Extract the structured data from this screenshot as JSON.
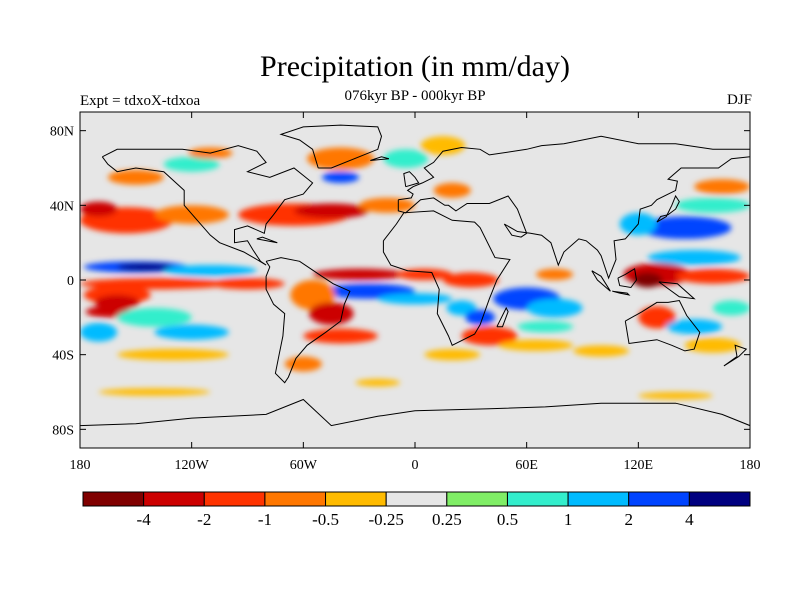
{
  "title": "Precipitation (in mm/day)",
  "subtitle": "076kyr BP - 000kyr BP",
  "left_label": "Expt = tdxoX-tdxoa",
  "right_label": "DJF",
  "map": {
    "lon_range": [
      -180,
      180
    ],
    "lat_range": [
      -90,
      90
    ],
    "background_color": "#e6e6e6",
    "coastline_color": "#000000"
  },
  "axes": {
    "x_ticks": [
      {
        "value": -180,
        "label": "180"
      },
      {
        "value": -120,
        "label": "120W"
      },
      {
        "value": -60,
        "label": "60W"
      },
      {
        "value": 0,
        "label": "0"
      },
      {
        "value": 60,
        "label": "60E"
      },
      {
        "value": 120,
        "label": "120E"
      },
      {
        "value": 180,
        "label": "180"
      }
    ],
    "y_ticks": [
      {
        "value": 80,
        "label": "80N"
      },
      {
        "value": 40,
        "label": "40N"
      },
      {
        "value": 0,
        "label": "0"
      },
      {
        "value": -40,
        "label": "40S"
      },
      {
        "value": -80,
        "label": "80S"
      }
    ]
  },
  "colorbar": {
    "colors": [
      "#800000",
      "#cc0000",
      "#ff3300",
      "#ff7700",
      "#ffbb00",
      "#e6e6e6",
      "#80ee66",
      "#33eecc",
      "#00bbff",
      "#0044ff",
      "#000080"
    ],
    "labels": [
      "-4",
      "-2",
      "-1",
      "-0.5",
      "-0.25",
      "0.25",
      "0.5",
      "1",
      "2",
      "4"
    ]
  },
  "anomaly_regions": [
    {
      "lon": -150,
      "lat": 7,
      "rx": 28,
      "ry": 3,
      "color": "#0044ff"
    },
    {
      "lon": -145,
      "lat": 7,
      "rx": 15,
      "ry": 2,
      "color": "#000080"
    },
    {
      "lon": -110,
      "lat": 5,
      "rx": 25,
      "ry": 3,
      "color": "#00bbff"
    },
    {
      "lon": -140,
      "lat": -2,
      "rx": 40,
      "ry": 3,
      "color": "#ff3300"
    },
    {
      "lon": -90,
      "lat": -2,
      "rx": 20,
      "ry": 3,
      "color": "#ff3300"
    },
    {
      "lon": -160,
      "lat": -8,
      "rx": 18,
      "ry": 5,
      "color": "#ff3300"
    },
    {
      "lon": -160,
      "lat": -12,
      "rx": 12,
      "ry": 4,
      "color": "#cc0000"
    },
    {
      "lon": -165,
      "lat": -17,
      "rx": 12,
      "ry": 3,
      "color": "#cc0000"
    },
    {
      "lon": -170,
      "lat": -28,
      "rx": 10,
      "ry": 5,
      "color": "#00bbff"
    },
    {
      "lon": -140,
      "lat": -20,
      "rx": 20,
      "ry": 5,
      "color": "#33eecc"
    },
    {
      "lon": -120,
      "lat": -28,
      "rx": 20,
      "ry": 4,
      "color": "#00bbff"
    },
    {
      "lon": -130,
      "lat": -40,
      "rx": 30,
      "ry": 3,
      "color": "#ffbb00"
    },
    {
      "lon": -155,
      "lat": 32,
      "rx": 25,
      "ry": 7,
      "color": "#ff3300"
    },
    {
      "lon": -170,
      "lat": 38,
      "rx": 10,
      "ry": 4,
      "color": "#cc0000"
    },
    {
      "lon": -120,
      "lat": 35,
      "rx": 20,
      "ry": 5,
      "color": "#ff7700"
    },
    {
      "lon": -150,
      "lat": 55,
      "rx": 15,
      "ry": 4,
      "color": "#ff7700"
    },
    {
      "lon": -120,
      "lat": 62,
      "rx": 15,
      "ry": 4,
      "color": "#33eecc"
    },
    {
      "lon": -110,
      "lat": 68,
      "rx": 12,
      "ry": 3,
      "color": "#ff7700"
    },
    {
      "lon": -65,
      "lat": 35,
      "rx": 30,
      "ry": 6,
      "color": "#ff3300"
    },
    {
      "lon": -45,
      "lat": 37,
      "rx": 20,
      "ry": 4,
      "color": "#cc0000"
    },
    {
      "lon": -15,
      "lat": 40,
      "rx": 15,
      "ry": 4,
      "color": "#ff7700"
    },
    {
      "lon": -40,
      "lat": 65,
      "rx": 18,
      "ry": 6,
      "color": "#ff7700"
    },
    {
      "lon": -5,
      "lat": 65,
      "rx": 12,
      "ry": 5,
      "color": "#33eecc"
    },
    {
      "lon": -40,
      "lat": 55,
      "rx": 10,
      "ry": 3,
      "color": "#0044ff"
    },
    {
      "lon": 15,
      "lat": 72,
      "rx": 12,
      "ry": 5,
      "color": "#ffbb00"
    },
    {
      "lon": 20,
      "lat": 48,
      "rx": 10,
      "ry": 4,
      "color": "#ff7700"
    },
    {
      "lon": -30,
      "lat": 3,
      "rx": 25,
      "ry": 3,
      "color": "#cc0000"
    },
    {
      "lon": 5,
      "lat": 3,
      "rx": 15,
      "ry": 3,
      "color": "#ff3300"
    },
    {
      "lon": -25,
      "lat": -6,
      "rx": 25,
      "ry": 4,
      "color": "#0044ff"
    },
    {
      "lon": 0,
      "lat": -10,
      "rx": 20,
      "ry": 3,
      "color": "#00bbff"
    },
    {
      "lon": -55,
      "lat": -8,
      "rx": 12,
      "ry": 8,
      "color": "#ff7700"
    },
    {
      "lon": -45,
      "lat": -18,
      "rx": 12,
      "ry": 6,
      "color": "#cc0000"
    },
    {
      "lon": -40,
      "lat": -30,
      "rx": 20,
      "ry": 4,
      "color": "#ff3300"
    },
    {
      "lon": -60,
      "lat": -45,
      "rx": 10,
      "ry": 4,
      "color": "#ff7700"
    },
    {
      "lon": 30,
      "lat": 0,
      "rx": 15,
      "ry": 4,
      "color": "#ff3300"
    },
    {
      "lon": 25,
      "lat": -15,
      "rx": 8,
      "ry": 4,
      "color": "#00bbff"
    },
    {
      "lon": 35,
      "lat": -20,
      "rx": 8,
      "ry": 4,
      "color": "#0044ff"
    },
    {
      "lon": 40,
      "lat": -30,
      "rx": 15,
      "ry": 5,
      "color": "#ff3300"
    },
    {
      "lon": 60,
      "lat": -10,
      "rx": 18,
      "ry": 6,
      "color": "#0044ff"
    },
    {
      "lon": 75,
      "lat": -15,
      "rx": 15,
      "ry": 5,
      "color": "#00bbff"
    },
    {
      "lon": 70,
      "lat": -25,
      "rx": 15,
      "ry": 3,
      "color": "#33eecc"
    },
    {
      "lon": 65,
      "lat": -35,
      "rx": 20,
      "ry": 3,
      "color": "#ffbb00"
    },
    {
      "lon": 75,
      "lat": 3,
      "rx": 10,
      "ry": 3,
      "color": "#ff7700"
    },
    {
      "lon": 130,
      "lat": 3,
      "rx": 18,
      "ry": 6,
      "color": "#cc0000"
    },
    {
      "lon": 125,
      "lat": 0,
      "rx": 8,
      "ry": 4,
      "color": "#800000"
    },
    {
      "lon": 160,
      "lat": 2,
      "rx": 20,
      "ry": 4,
      "color": "#ff3300"
    },
    {
      "lon": 150,
      "lat": 12,
      "rx": 25,
      "ry": 4,
      "color": "#00bbff"
    },
    {
      "lon": 145,
      "lat": 28,
      "rx": 25,
      "ry": 6,
      "color": "#0044ff"
    },
    {
      "lon": 120,
      "lat": 30,
      "rx": 10,
      "ry": 6,
      "color": "#00bbff"
    },
    {
      "lon": 160,
      "lat": 40,
      "rx": 20,
      "ry": 4,
      "color": "#33eecc"
    },
    {
      "lon": 165,
      "lat": 50,
      "rx": 15,
      "ry": 4,
      "color": "#ff7700"
    },
    {
      "lon": 130,
      "lat": -20,
      "rx": 10,
      "ry": 6,
      "color": "#ff3300"
    },
    {
      "lon": 150,
      "lat": -25,
      "rx": 15,
      "ry": 4,
      "color": "#00bbff"
    },
    {
      "lon": 170,
      "lat": -15,
      "rx": 10,
      "ry": 4,
      "color": "#33eecc"
    },
    {
      "lon": 160,
      "lat": -35,
      "rx": 15,
      "ry": 4,
      "color": "#ffbb00"
    },
    {
      "lon": 20,
      "lat": -40,
      "rx": 15,
      "ry": 3,
      "color": "#ffbb00"
    },
    {
      "lon": 100,
      "lat": -38,
      "rx": 15,
      "ry": 3,
      "color": "#ffbb00"
    },
    {
      "lon": 140,
      "lat": -62,
      "rx": 20,
      "ry": 2,
      "color": "#ffbb00"
    },
    {
      "lon": -140,
      "lat": -60,
      "rx": 30,
      "ry": 2,
      "color": "#ffbb00"
    },
    {
      "lon": -20,
      "lat": -55,
      "rx": 12,
      "ry": 2,
      "color": "#ffbb00"
    }
  ]
}
